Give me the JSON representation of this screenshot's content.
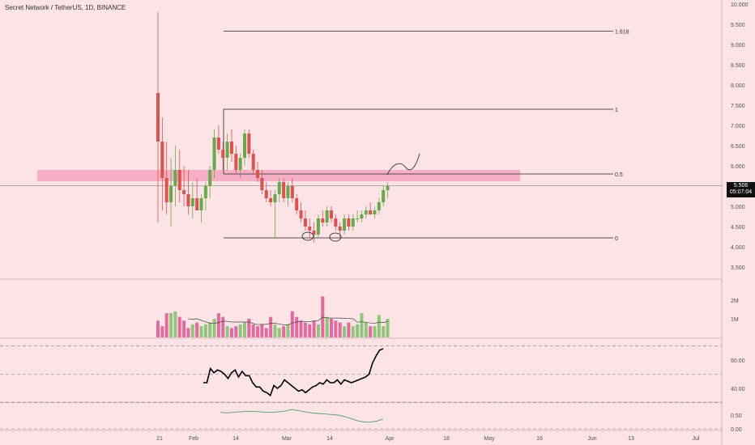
{
  "header": {
    "title": "Secret Network / TetherUS, 1D, BINANCE"
  },
  "price_tag": {
    "price": "5.506",
    "countdown": "05:07:04"
  },
  "colors": {
    "background": "#fbe3e6",
    "up": "#6aa84f",
    "down": "#d9534f",
    "vol_up": "#93c47d",
    "vol_down": "#e06c9f",
    "zone": "#f4a6bd"
  },
  "chart_data": [
    {
      "type": "candlestick",
      "title": "Secret Network / TetherUS, 1D, BINANCE",
      "ylim": [
        3.5,
        10.0
      ],
      "y_ticks": [
        "3.500",
        "4.000",
        "4.500",
        "5.000",
        "5.500",
        "6.000",
        "6.500",
        "7.000",
        "7.500",
        "8.000",
        "8.500",
        "9.000",
        "9.500",
        "10.000"
      ],
      "x_ticks": [
        "21",
        "Feb",
        "14",
        "Mar",
        "14",
        "Apr",
        "18",
        "May",
        "16",
        "Jun",
        "13",
        "Jul"
      ],
      "ohlc": [
        [
          7.8,
          9.8,
          4.6,
          6.6
        ],
        [
          6.6,
          7.2,
          4.9,
          5.7
        ],
        [
          5.7,
          6.6,
          4.8,
          5.1
        ],
        [
          5.1,
          6.2,
          4.5,
          5.5
        ],
        [
          5.5,
          6.5,
          5.0,
          5.9
        ],
        [
          5.9,
          6.4,
          5.1,
          5.4
        ],
        [
          5.4,
          6.0,
          5.0,
          5.3
        ],
        [
          5.3,
          5.9,
          4.8,
          5.0
        ],
        [
          5.0,
          5.6,
          4.7,
          5.2
        ],
        [
          5.2,
          5.7,
          4.9,
          4.9
        ],
        [
          4.9,
          5.3,
          4.6,
          5.2
        ],
        [
          5.2,
          5.6,
          4.9,
          5.5
        ],
        [
          5.5,
          6.0,
          5.2,
          5.9
        ],
        [
          5.9,
          6.9,
          5.7,
          6.7
        ],
        [
          6.7,
          7.0,
          6.3,
          6.4
        ],
        [
          6.4,
          6.6,
          5.9,
          6.2
        ],
        [
          6.2,
          6.8,
          5.9,
          6.6
        ],
        [
          6.6,
          6.9,
          6.1,
          6.3
        ],
        [
          6.3,
          6.5,
          5.8,
          5.9
        ],
        [
          5.9,
          6.3,
          5.7,
          6.2
        ],
        [
          6.2,
          6.9,
          6.0,
          6.8
        ],
        [
          6.8,
          6.9,
          6.2,
          6.3
        ],
        [
          6.3,
          6.4,
          5.8,
          5.9
        ],
        [
          5.9,
          6.1,
          5.6,
          5.7
        ],
        [
          5.7,
          5.9,
          5.3,
          5.4
        ],
        [
          5.4,
          5.6,
          5.1,
          5.2
        ],
        [
          5.2,
          5.4,
          5.0,
          5.1
        ],
        [
          5.1,
          5.4,
          4.2,
          5.3
        ],
        [
          5.3,
          5.7,
          5.1,
          5.6
        ],
        [
          5.6,
          5.7,
          5.1,
          5.2
        ],
        [
          5.2,
          5.6,
          5.0,
          5.5
        ],
        [
          5.5,
          5.7,
          5.1,
          5.2
        ],
        [
          5.2,
          5.3,
          4.8,
          4.9
        ],
        [
          4.9,
          5.1,
          4.6,
          4.7
        ],
        [
          4.7,
          4.9,
          4.4,
          4.5
        ],
        [
          4.5,
          4.7,
          4.2,
          4.4
        ],
        [
          4.4,
          4.6,
          4.1,
          4.3
        ],
        [
          4.3,
          4.8,
          4.2,
          4.7
        ],
        [
          4.7,
          4.9,
          4.5,
          4.6
        ],
        [
          4.6,
          5.0,
          4.5,
          4.9
        ],
        [
          4.9,
          5.0,
          4.6,
          4.7
        ],
        [
          4.7,
          4.8,
          4.4,
          4.5
        ],
        [
          4.5,
          4.6,
          4.2,
          4.4
        ],
        [
          4.4,
          4.8,
          4.3,
          4.7
        ],
        [
          4.7,
          4.8,
          4.4,
          4.5
        ],
        [
          4.5,
          4.8,
          4.4,
          4.7
        ],
        [
          4.7,
          4.9,
          4.6,
          4.7
        ],
        [
          4.7,
          4.9,
          4.6,
          4.8
        ],
        [
          4.8,
          5.0,
          4.7,
          4.9
        ],
        [
          4.9,
          5.1,
          4.8,
          4.8
        ],
        [
          4.8,
          5.0,
          4.7,
          4.9
        ],
        [
          4.9,
          5.2,
          4.8,
          5.1
        ],
        [
          5.1,
          5.5,
          5.0,
          5.4
        ],
        [
          5.4,
          5.6,
          5.2,
          5.5
        ]
      ],
      "fib_levels": [
        {
          "label": "1.618",
          "value": 9.33
        },
        {
          "label": "1",
          "value": 7.4
        },
        {
          "label": "0.5",
          "value": 5.8
        },
        {
          "label": "0",
          "value": 4.22
        }
      ],
      "current_price": 5.506
    },
    {
      "type": "bar",
      "title": "Volume",
      "y_ticks": [
        "1M",
        "2M"
      ],
      "values": [
        0.9,
        0.6,
        1.3,
        1.3,
        1.4,
        1.1,
        0.9,
        0.5,
        0.7,
        0.8,
        0.6,
        0.7,
        0.8,
        1.0,
        1.3,
        1.1,
        0.6,
        0.5,
        0.6,
        0.7,
        0.8,
        1.0,
        0.7,
        0.6,
        0.7,
        0.5,
        1.1,
        0.7,
        0.5,
        0.6,
        0.7,
        1.4,
        1.1,
        0.9,
        0.8,
        0.7,
        0.9,
        0.7,
        2.2,
        1.1,
        1.0,
        0.9,
        0.8,
        0.6,
        0.8,
        0.6,
        0.7,
        1.3,
        0.8,
        0.6,
        0.6,
        1.2,
        0.6,
        1.0
      ]
    },
    {
      "type": "line",
      "title": "RSI",
      "y_ticks": [
        "40.00",
        "60.00"
      ],
      "ylim": [
        30,
        75
      ],
      "values": [
        44,
        44,
        54,
        51,
        53,
        52,
        50,
        47,
        51,
        53,
        48,
        52,
        49,
        49,
        44,
        41,
        41,
        38,
        37,
        35,
        42,
        40,
        42,
        46,
        44,
        42,
        40,
        38,
        39,
        37,
        39,
        41,
        42,
        44,
        43,
        46,
        44,
        44,
        46,
        43,
        46,
        45,
        44,
        45,
        46,
        47,
        48,
        50,
        58,
        63,
        67,
        68
      ]
    },
    {
      "type": "line",
      "title": "Oscillator",
      "y_ticks": [
        "0.00",
        "0.50"
      ],
      "ylim": [
        -0.3,
        1.0
      ],
      "values": [
        0.6,
        0.58,
        0.6,
        0.62,
        0.63,
        0.64,
        0.62,
        0.6,
        0.6,
        0.62,
        0.65,
        0.7,
        0.66,
        0.62,
        0.58,
        0.56,
        0.54,
        0.52,
        0.5,
        0.45,
        0.38,
        0.3,
        0.25,
        0.24,
        0.28,
        0.36
      ]
    }
  ]
}
